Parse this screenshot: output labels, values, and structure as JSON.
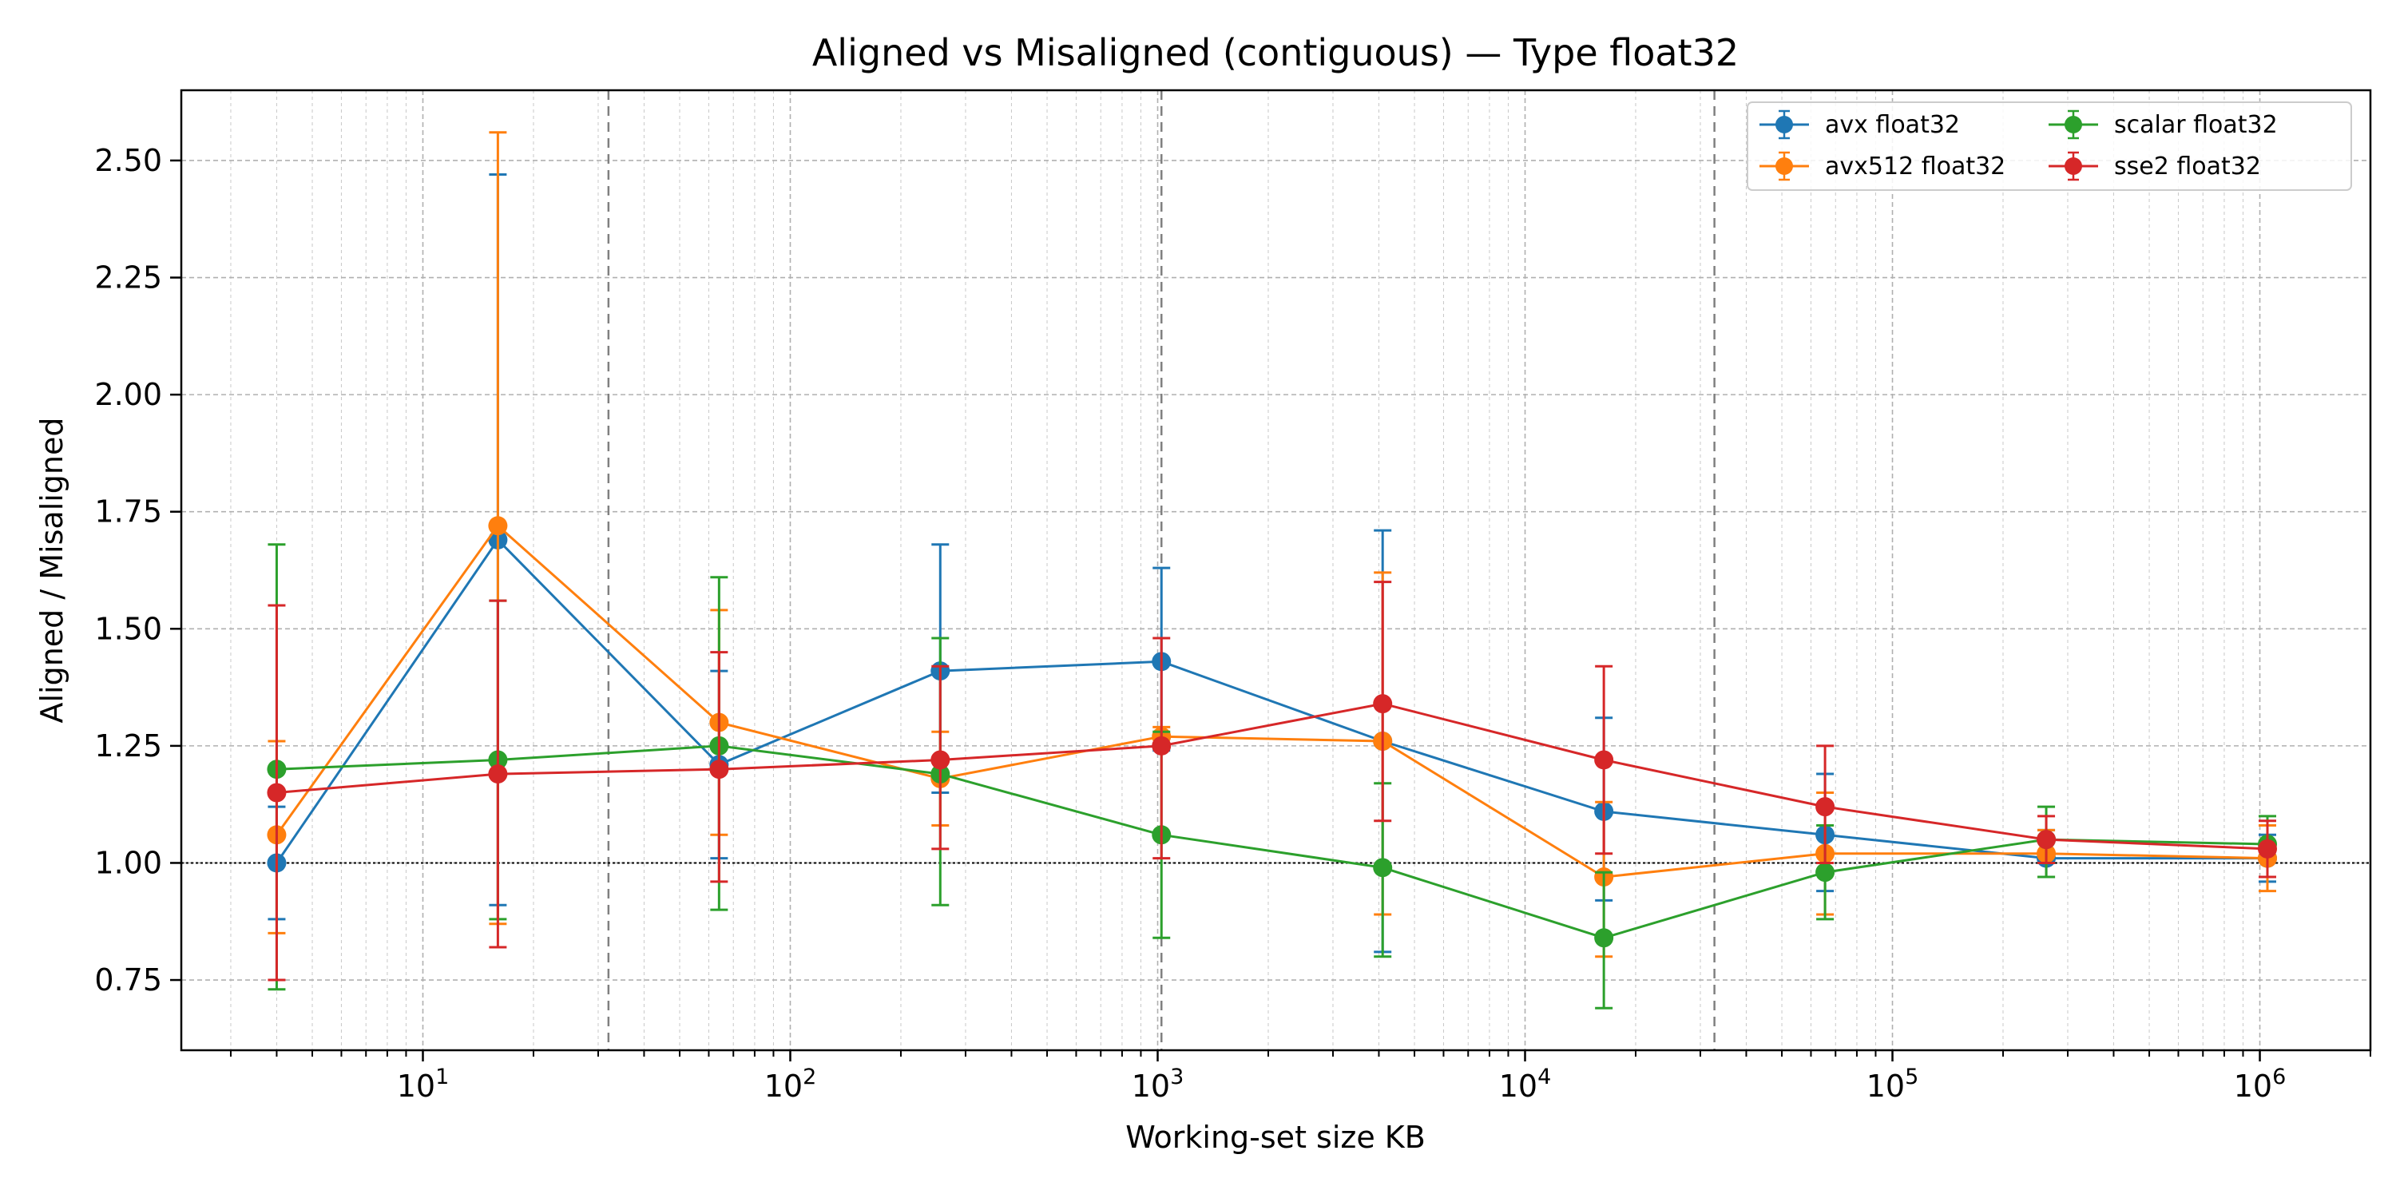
{
  "chart_data": {
    "type": "line",
    "title": "Aligned vs Misaligned (contiguous) — Type float32",
    "xlabel": "Working-set size KB",
    "ylabel": "Aligned / Misaligned",
    "x_scale": "log",
    "xlim": [
      2.2,
      2000000
    ],
    "ylim": [
      0.6,
      2.65
    ],
    "x": [
      4,
      16,
      64,
      256,
      1024,
      4096,
      16384,
      65536,
      262144,
      1048576
    ],
    "x_tick_values": [
      10,
      100,
      1000,
      10000,
      100000,
      1000000
    ],
    "x_tick_labels": [
      {
        "base": "10",
        "exp": "1"
      },
      {
        "base": "10",
        "exp": "2"
      },
      {
        "base": "10",
        "exp": "3"
      },
      {
        "base": "10",
        "exp": "4"
      },
      {
        "base": "10",
        "exp": "5"
      },
      {
        "base": "10",
        "exp": "6"
      }
    ],
    "y_ticks": [
      "0.75",
      "1.00",
      "1.25",
      "1.50",
      "1.75",
      "2.00",
      "2.25",
      "2.50"
    ],
    "grid": true,
    "reference_line": 1.0,
    "vertical_markers": [
      32,
      1024,
      32768
    ],
    "legend_position": "top-right",
    "series": [
      {
        "name": "avx float32",
        "color": "#1f77b4",
        "values": [
          1.0,
          1.69,
          1.21,
          1.41,
          1.43,
          1.26,
          1.11,
          1.06,
          1.01,
          1.01
        ],
        "err_low": [
          0.88,
          0.91,
          1.01,
          1.15,
          1.24,
          0.81,
          0.92,
          0.94,
          0.97,
          0.96
        ],
        "err_high": [
          1.12,
          2.47,
          1.41,
          1.68,
          1.63,
          1.71,
          1.31,
          1.19,
          1.07,
          1.06
        ]
      },
      {
        "name": "avx512 float32",
        "color": "#ff7f0e",
        "values": [
          1.06,
          1.72,
          1.3,
          1.18,
          1.27,
          1.26,
          0.97,
          1.02,
          1.02,
          1.01
        ],
        "err_low": [
          0.85,
          0.87,
          1.06,
          1.08,
          1.25,
          0.89,
          0.8,
          0.89,
          0.97,
          0.94
        ],
        "err_high": [
          1.26,
          2.56,
          1.54,
          1.28,
          1.29,
          1.62,
          1.13,
          1.15,
          1.07,
          1.08
        ]
      },
      {
        "name": "scalar float32",
        "color": "#2ca02c",
        "values": [
          1.2,
          1.22,
          1.25,
          1.19,
          1.06,
          0.99,
          0.84,
          0.98,
          1.05,
          1.04
        ],
        "err_low": [
          0.73,
          0.88,
          0.9,
          0.91,
          0.84,
          0.8,
          0.69,
          0.88,
          0.97,
          0.97
        ],
        "err_high": [
          1.68,
          1.56,
          1.61,
          1.48,
          1.28,
          1.17,
          0.98,
          1.08,
          1.12,
          1.1
        ]
      },
      {
        "name": "sse2 float32",
        "color": "#d62728",
        "values": [
          1.15,
          1.19,
          1.2,
          1.22,
          1.25,
          1.34,
          1.22,
          1.12,
          1.05,
          1.03
        ],
        "err_low": [
          0.75,
          0.82,
          0.96,
          1.03,
          1.01,
          1.09,
          1.02,
          1.0,
          1.0,
          0.97
        ],
        "err_high": [
          1.55,
          1.56,
          1.45,
          1.42,
          1.48,
          1.6,
          1.42,
          1.25,
          1.1,
          1.09
        ]
      }
    ]
  }
}
